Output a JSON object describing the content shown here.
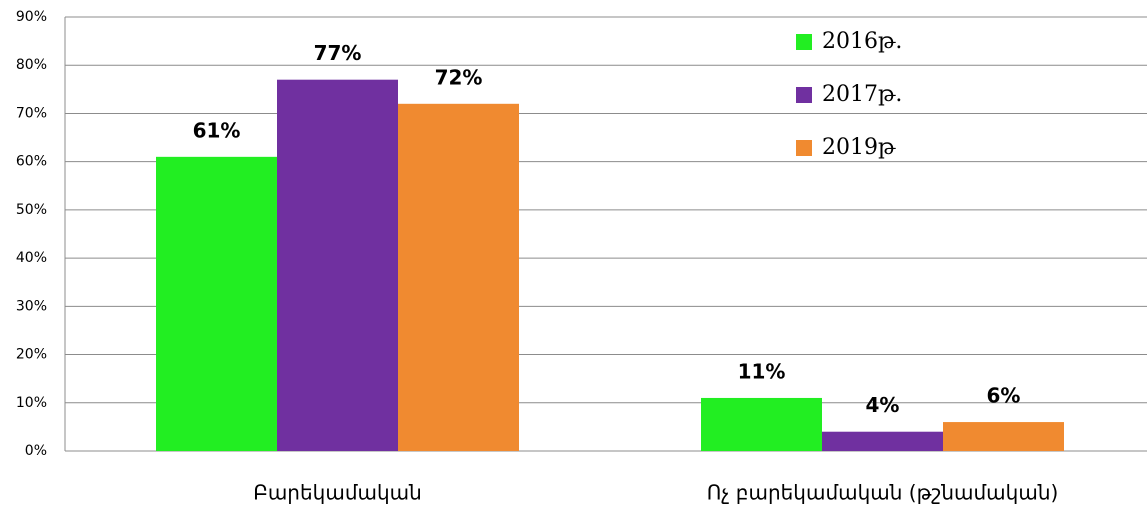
{
  "chart_data": {
    "type": "bar",
    "categories": [
      "Բարեկամական",
      "Ոչ բարեկամական (թշնամական)"
    ],
    "series": [
      {
        "name": "2016թ.",
        "color": "#22ee22",
        "values": [
          61,
          11
        ],
        "value_labels": [
          "61%",
          "11%"
        ]
      },
      {
        "name": "2017թ.",
        "color": "#7030a0",
        "values": [
          77,
          4
        ],
        "value_labels": [
          "77%",
          "4%"
        ]
      },
      {
        "name": "2019թ",
        "color": "#f08a30",
        "values": [
          72,
          6
        ],
        "value_labels": [
          "72%",
          "6%"
        ]
      }
    ],
    "ylim": [
      0,
      90
    ],
    "yticks": [
      {
        "value": 0,
        "label": "0%"
      },
      {
        "value": 10,
        "label": "10%"
      },
      {
        "value": 20,
        "label": "20%"
      },
      {
        "value": 30,
        "label": "30%"
      },
      {
        "value": 40,
        "label": "40%"
      },
      {
        "value": 50,
        "label": "50%"
      },
      {
        "value": 60,
        "label": "60%"
      },
      {
        "value": 70,
        "label": "70%"
      },
      {
        "value": 80,
        "label": "80%"
      },
      {
        "value": 90,
        "label": "90%"
      }
    ],
    "grid": true,
    "legend": "top-right"
  }
}
